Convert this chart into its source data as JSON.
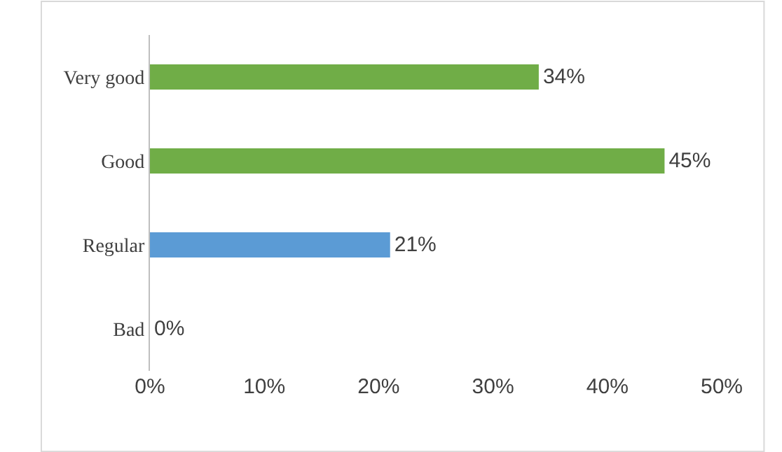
{
  "chart_data": {
    "type": "bar",
    "orientation": "horizontal",
    "categories": [
      "Very good",
      "Good",
      "Regular",
      "Bad"
    ],
    "values": [
      34,
      45,
      21,
      0
    ],
    "colors": [
      "#70ad47",
      "#70ad47",
      "#5b9bd5",
      "#5b9bd5"
    ],
    "value_labels": [
      "34%",
      "45%",
      "21%",
      "0%"
    ],
    "xlim": [
      0,
      50
    ],
    "xticks": [
      {
        "value": 0,
        "label": "0%"
      },
      {
        "value": 10,
        "label": "10%"
      },
      {
        "value": 20,
        "label": "20%"
      },
      {
        "value": 30,
        "label": "30%"
      },
      {
        "value": 40,
        "label": "40%"
      },
      {
        "value": 50,
        "label": "50%"
      }
    ],
    "legend": false
  }
}
